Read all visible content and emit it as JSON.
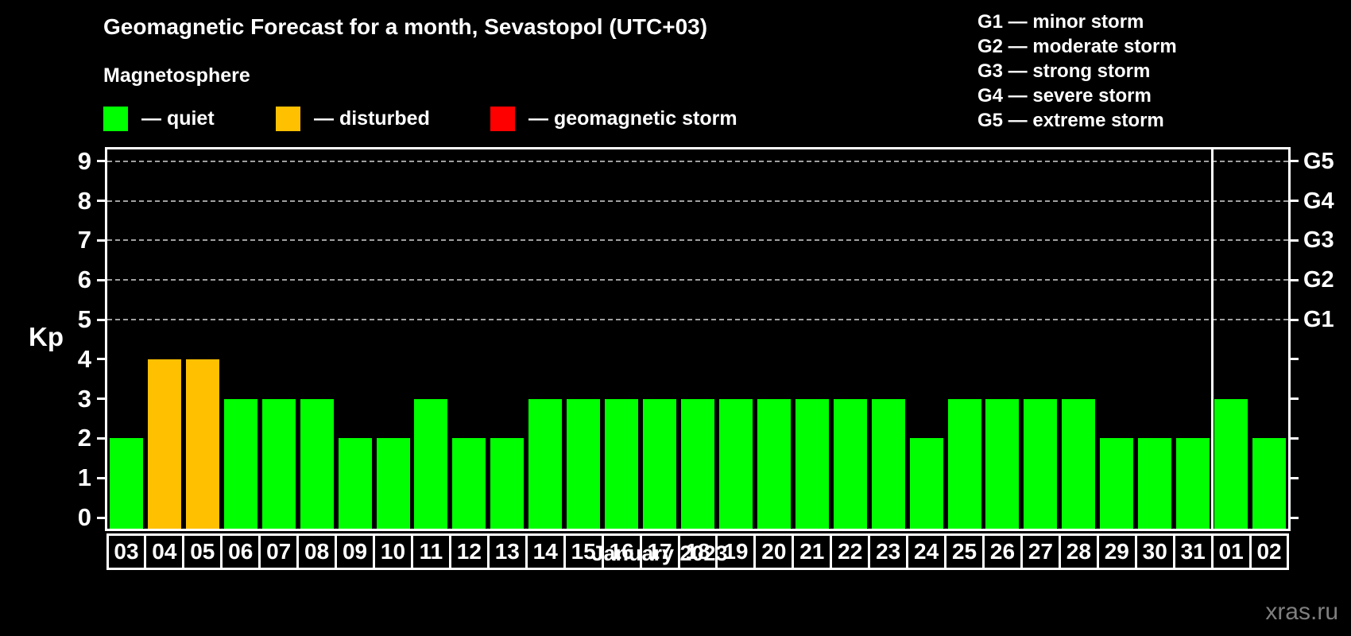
{
  "title": "Geomagnetic Forecast for a month, Sevastopol (UTC+03)",
  "subtitle": "Magnetosphere",
  "status_legend": [
    {
      "name": "quiet",
      "label": "— quiet",
      "color": "#00ff00",
      "offset_x": 0
    },
    {
      "name": "disturbed",
      "label": "— disturbed",
      "color": "#ffc000",
      "offset_x": 217
    },
    {
      "name": "storm",
      "label": "— geomagnetic storm",
      "color": "#ff0000",
      "offset_x": 487
    }
  ],
  "g_scale_legend": [
    "G1 — minor storm",
    "G2 — moderate storm",
    "G3 — strong storm",
    "G4 — severe storm",
    "G5 — extreme storm"
  ],
  "xlabel": "January 2023",
  "watermark": "xras.ru",
  "chart_data": {
    "type": "bar",
    "title": "Geomagnetic Forecast for a month, Sevastopol (UTC+03)",
    "subtitle": "Magnetosphere",
    "ylabel": "Kp",
    "xlabel": "January 2023",
    "ylim": [
      0,
      9
    ],
    "yticks": [
      0,
      1,
      2,
      3,
      4,
      5,
      6,
      7,
      8,
      9
    ],
    "gridlines_at": [
      5,
      6,
      7,
      8,
      9
    ],
    "grid": "horizontal dashed lines at storm levels G1–G5",
    "legend_position": "top",
    "right_axis": [
      {
        "kp": 5,
        "label": "G1"
      },
      {
        "kp": 6,
        "label": "G2"
      },
      {
        "kp": 7,
        "label": "G3"
      },
      {
        "kp": 8,
        "label": "G4"
      },
      {
        "kp": 9,
        "label": "G5"
      }
    ],
    "categories": [
      "03",
      "04",
      "05",
      "06",
      "07",
      "08",
      "09",
      "10",
      "11",
      "12",
      "13",
      "14",
      "15",
      "16",
      "17",
      "18",
      "19",
      "20",
      "21",
      "22",
      "23",
      "24",
      "25",
      "26",
      "27",
      "28",
      "29",
      "30",
      "31",
      "01",
      "02"
    ],
    "values": [
      2,
      4,
      4,
      3,
      3,
      3,
      2,
      2,
      3,
      2,
      2,
      3,
      3,
      3,
      3,
      3,
      3,
      3,
      3,
      3,
      3,
      2,
      3,
      3,
      3,
      3,
      2,
      2,
      2,
      3,
      2
    ],
    "statuses": [
      "quiet",
      "disturbed",
      "disturbed",
      "quiet",
      "quiet",
      "quiet",
      "quiet",
      "quiet",
      "quiet",
      "quiet",
      "quiet",
      "quiet",
      "quiet",
      "quiet",
      "quiet",
      "quiet",
      "quiet",
      "quiet",
      "quiet",
      "quiet",
      "quiet",
      "quiet",
      "quiet",
      "quiet",
      "quiet",
      "quiet",
      "quiet",
      "quiet",
      "quiet",
      "quiet",
      "quiet"
    ],
    "colors": {
      "quiet": "#00ff00",
      "disturbed": "#ffc000",
      "storm": "#ff0000"
    },
    "month_divider_before": "01"
  }
}
